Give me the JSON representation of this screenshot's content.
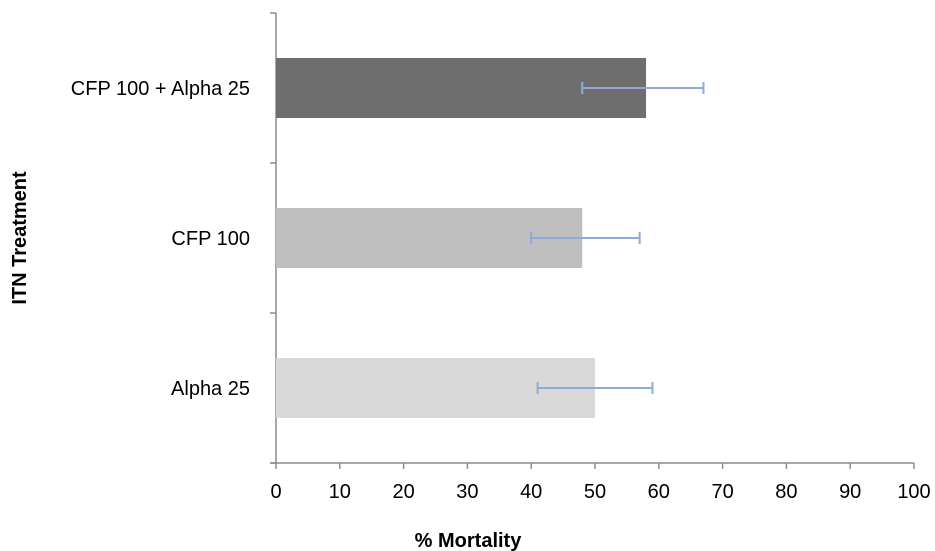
{
  "chart_data": {
    "type": "bar",
    "orientation": "horizontal",
    "categories": [
      "Alpha 25",
      "CFP 100",
      "CFP 100 + Alpha 25"
    ],
    "values": [
      50,
      48,
      58
    ],
    "error_low": [
      41,
      40,
      48
    ],
    "error_high": [
      59,
      57,
      67
    ],
    "xlabel": "% Mortality",
    "ylabel": "ITN Treatment",
    "xlim": [
      0,
      100
    ],
    "xticks": [
      0,
      10,
      20,
      30,
      40,
      50,
      60,
      70,
      80,
      90,
      100
    ],
    "grid": false,
    "legend": "none",
    "colors": {
      "Alpha 25": "#d9d9d9",
      "CFP 100": "#bfbfbf",
      "CFP 100 + Alpha 25": "#6e6e6e",
      "error_bar": "#8eaadb",
      "axis": "#8c8c8c"
    }
  }
}
